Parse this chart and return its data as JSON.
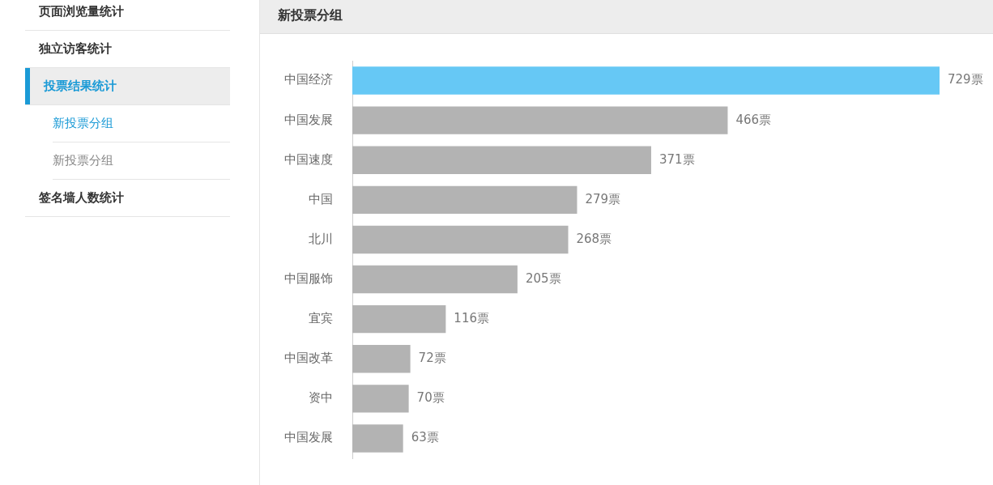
{
  "chart_data": {
    "type": "bar",
    "orientation": "horizontal",
    "title": "新投票分组",
    "categories": [
      "中国经济",
      "中国发展",
      "中国速度",
      "中国",
      "北川",
      "中国服饰",
      "宜宾",
      "中国改革",
      "资中",
      "中国发展"
    ],
    "values": [
      729,
      466,
      371,
      279,
      268,
      205,
      116,
      72,
      70,
      63
    ],
    "colors": [
      "#66c8f5",
      "#b3b3b3",
      "#b3b3b3",
      "#b3b3b3",
      "#b3b3b3",
      "#b3b3b3",
      "#b3b3b3",
      "#b3b3b3",
      "#b3b3b3",
      "#b3b3b3"
    ],
    "value_labels": [
      "729票",
      "466票",
      "371票",
      "279票",
      "268票",
      "205票",
      "116票",
      "72票",
      "70票",
      "63票"
    ],
    "legend": false,
    "annotations": [
      "页面浏览量统计",
      "独立访客统计",
      "投票结果统计",
      "新投票分组",
      "新投票分组",
      "签名墙人数统计"
    ]
  }
}
